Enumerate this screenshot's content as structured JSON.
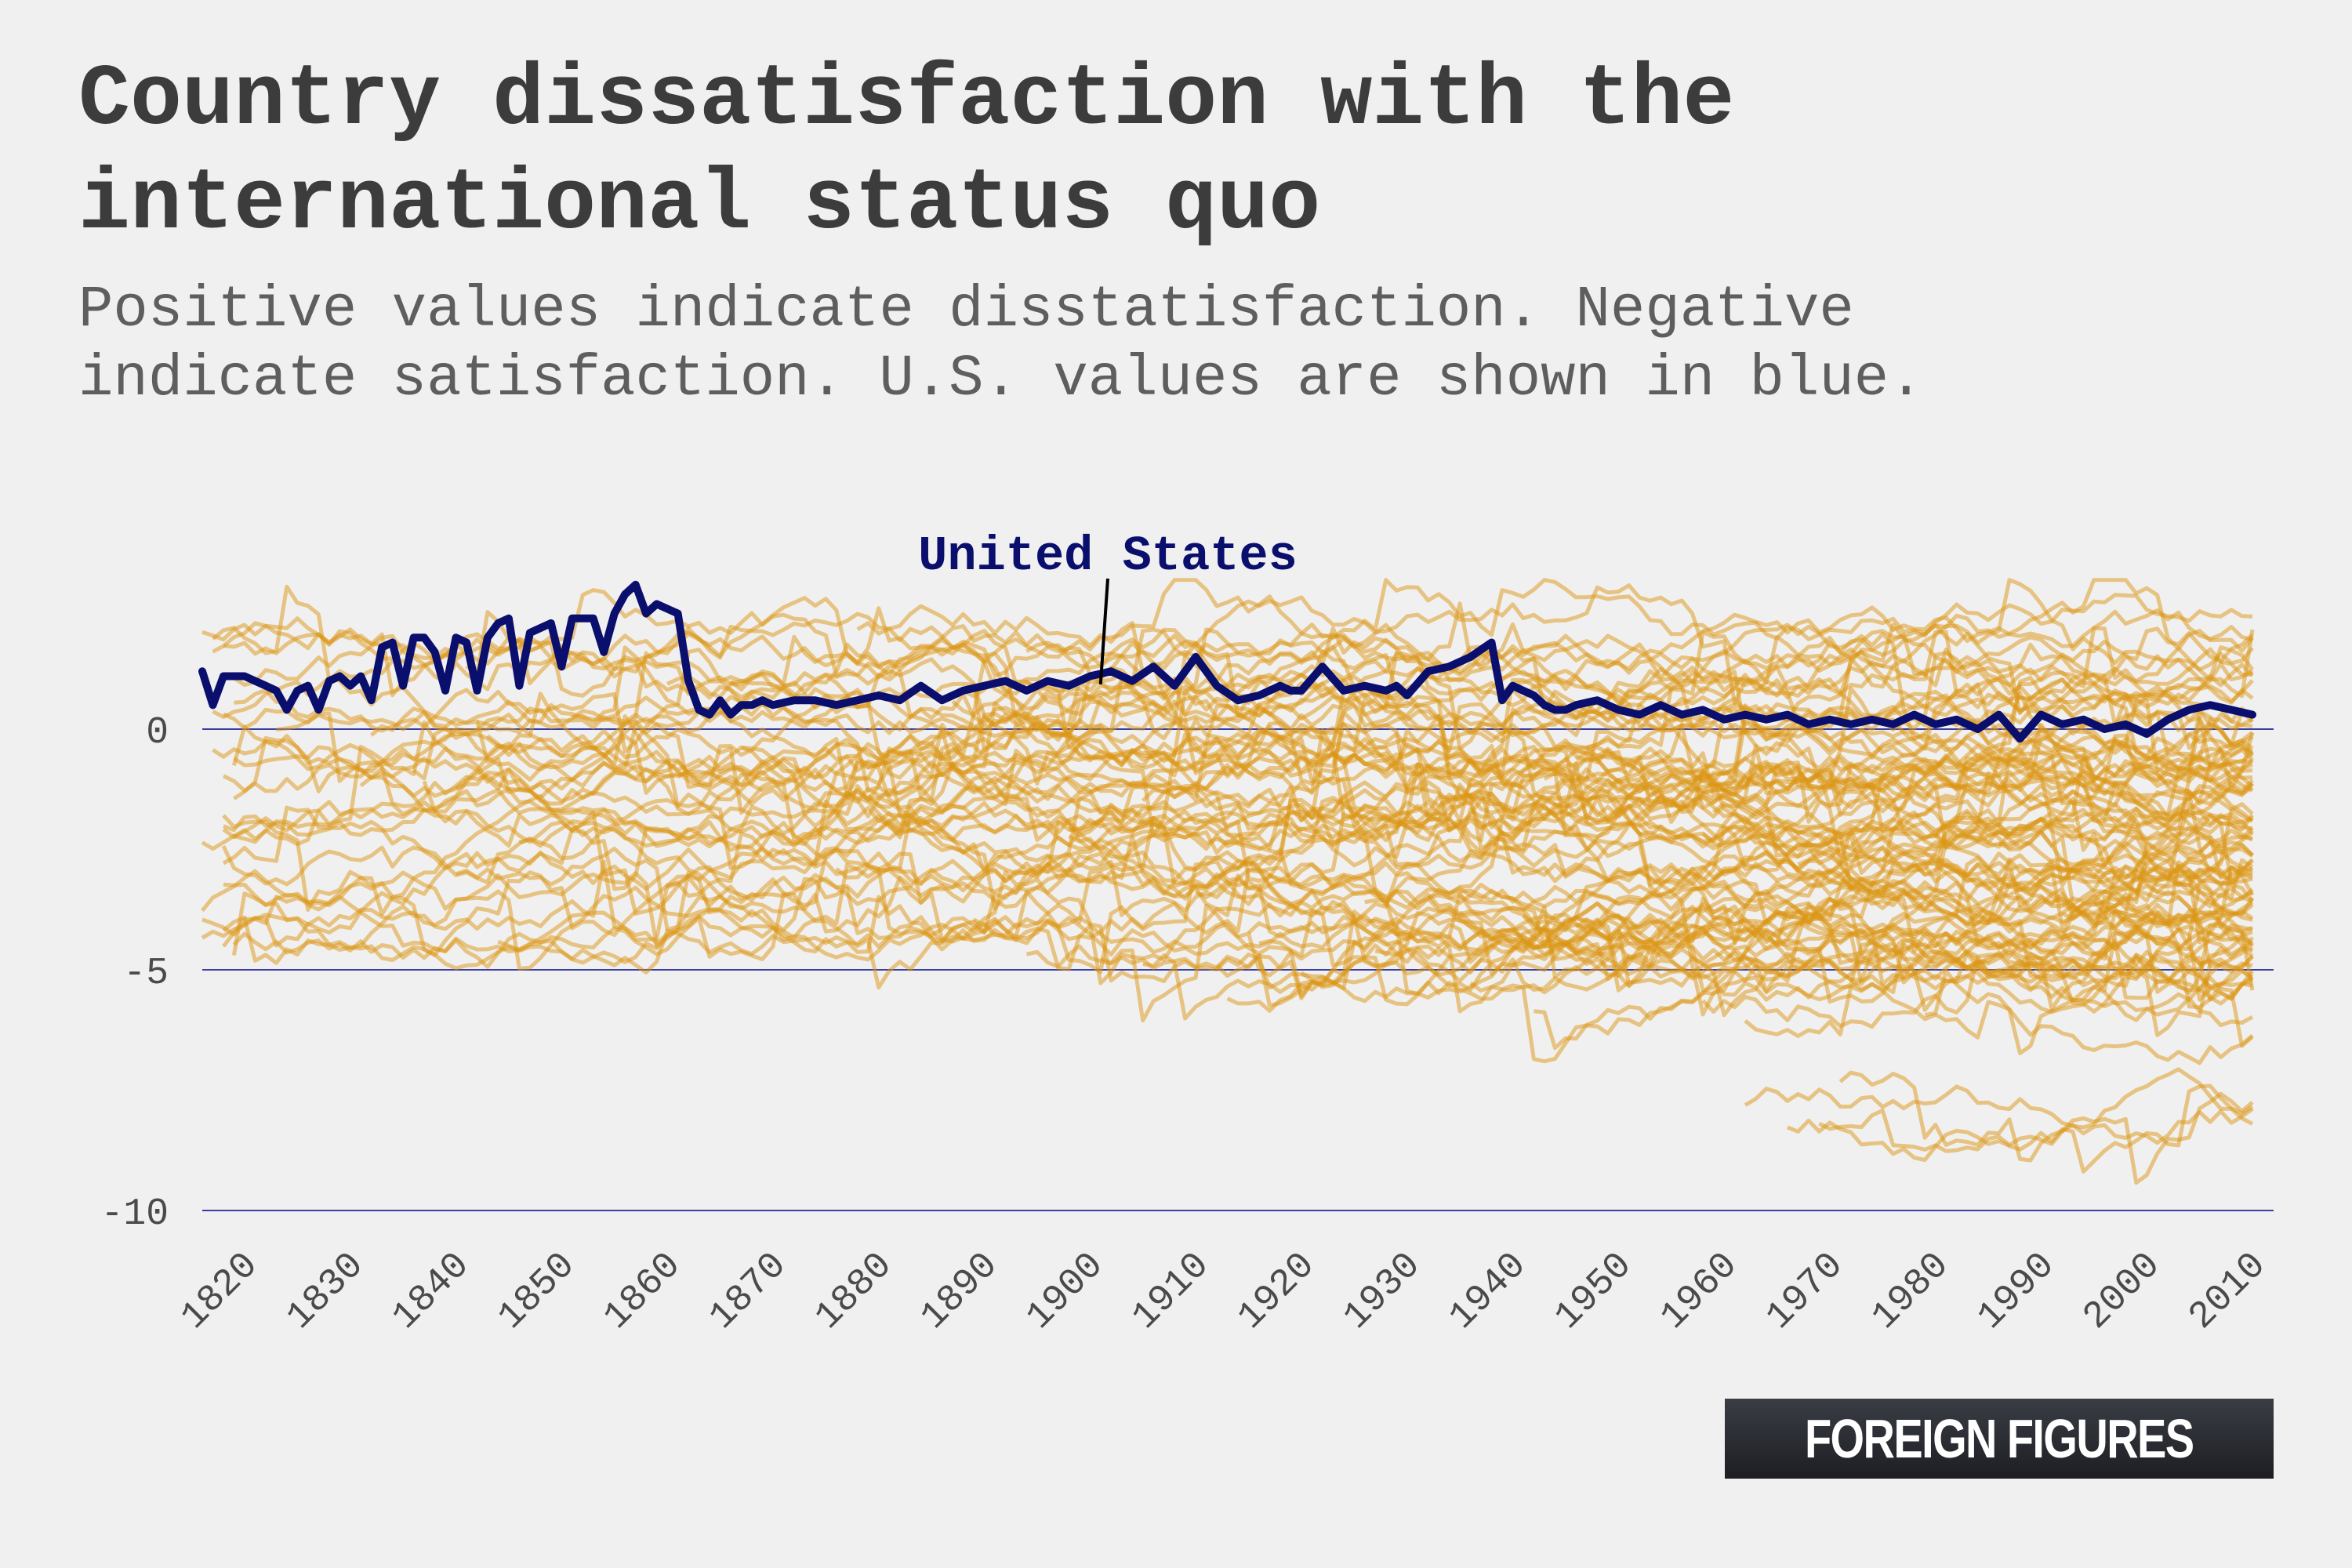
{
  "header": {
    "title": "Country dissatisfaction with the international status quo",
    "subtitle": "Positive values indicate disstatisfaction. Negative indicate satisfaction. U.S. values are shown in blue."
  },
  "logo": {
    "text": "FOREIGN FIGURES"
  },
  "colors": {
    "background": "#f0f0f0",
    "us_line": "#0a0f6e",
    "other_countries": "#dc9614",
    "gridline": "#3a3fa0"
  },
  "chart_data": {
    "type": "line",
    "title": "Country dissatisfaction with the international status quo",
    "xlabel": "",
    "ylabel": "",
    "xlim": [
      1816,
      2012
    ],
    "ylim": [
      -10,
      3
    ],
    "x_ticks": [
      1820,
      1830,
      1840,
      1850,
      1860,
      1870,
      1880,
      1890,
      1900,
      1910,
      1920,
      1930,
      1940,
      1950,
      1960,
      1970,
      1980,
      1990,
      2000,
      2010
    ],
    "y_ticks": [
      0,
      -5,
      -10
    ],
    "y_tick_labels": [
      "0",
      "-5",
      "-10"
    ],
    "grid": "horizontal",
    "highlight": {
      "name": "United States",
      "annotation": "United States",
      "annotation_point": [
        1901,
        0.8
      ],
      "x": [
        1816,
        1817,
        1818,
        1820,
        1822,
        1823,
        1824,
        1825,
        1826,
        1827,
        1828,
        1829,
        1830,
        1831,
        1832,
        1833,
        1834,
        1835,
        1836,
        1837,
        1838,
        1839,
        1840,
        1841,
        1842,
        1843,
        1844,
        1845,
        1846,
        1847,
        1848,
        1849,
        1850,
        1851,
        1852,
        1853,
        1854,
        1855,
        1856,
        1857,
        1858,
        1859,
        1860,
        1861,
        1862,
        1863,
        1864,
        1865,
        1866,
        1867,
        1868,
        1869,
        1870,
        1872,
        1874,
        1876,
        1878,
        1880,
        1882,
        1884,
        1886,
        1888,
        1890,
        1892,
        1894,
        1896,
        1898,
        1900,
        1902,
        1904,
        1906,
        1908,
        1910,
        1912,
        1914,
        1916,
        1917,
        1918,
        1919,
        1920,
        1922,
        1924,
        1926,
        1928,
        1929,
        1930,
        1932,
        1934,
        1936,
        1938,
        1939,
        1940,
        1941,
        1942,
        1943,
        1944,
        1945,
        1946,
        1948,
        1950,
        1952,
        1954,
        1956,
        1958,
        1960,
        1962,
        1964,
        1966,
        1968,
        1970,
        1972,
        1974,
        1976,
        1978,
        1980,
        1982,
        1984,
        1986,
        1988,
        1990,
        1992,
        1994,
        1996,
        1998,
        2000,
        2002,
        2004,
        2006,
        2008,
        2010
      ],
      "y": [
        1.2,
        0.5,
        1.1,
        1.1,
        0.9,
        0.8,
        0.4,
        0.8,
        0.9,
        0.4,
        1.0,
        1.1,
        0.9,
        1.1,
        0.6,
        1.7,
        1.8,
        0.9,
        1.9,
        1.9,
        1.6,
        0.8,
        1.9,
        1.8,
        0.8,
        1.9,
        2.2,
        2.3,
        0.9,
        2.0,
        2.1,
        2.2,
        1.3,
        2.3,
        2.3,
        2.3,
        1.6,
        2.4,
        2.8,
        3.0,
        2.4,
        2.6,
        2.5,
        2.4,
        1.0,
        0.4,
        0.3,
        0.6,
        0.3,
        0.5,
        0.5,
        0.6,
        0.5,
        0.6,
        0.6,
        0.5,
        0.6,
        0.7,
        0.6,
        0.9,
        0.6,
        0.8,
        0.9,
        1.0,
        0.8,
        1.0,
        0.9,
        1.1,
        1.2,
        1.0,
        1.3,
        0.9,
        1.5,
        0.9,
        0.6,
        0.7,
        0.8,
        0.9,
        0.8,
        0.8,
        1.3,
        0.8,
        0.9,
        0.8,
        0.9,
        0.7,
        1.2,
        1.3,
        1.5,
        1.8,
        0.6,
        0.9,
        0.8,
        0.7,
        0.5,
        0.4,
        0.4,
        0.5,
        0.6,
        0.4,
        0.3,
        0.5,
        0.3,
        0.4,
        0.2,
        0.3,
        0.2,
        0.3,
        0.1,
        0.2,
        0.1,
        0.2,
        0.1,
        0.3,
        0.1,
        0.2,
        0.0,
        0.3,
        -0.2,
        0.3,
        0.1,
        0.2,
        0.0,
        0.1,
        -0.1,
        0.2,
        0.4,
        0.5,
        0.4,
        0.3
      ]
    },
    "other_countries_count": 96
  }
}
